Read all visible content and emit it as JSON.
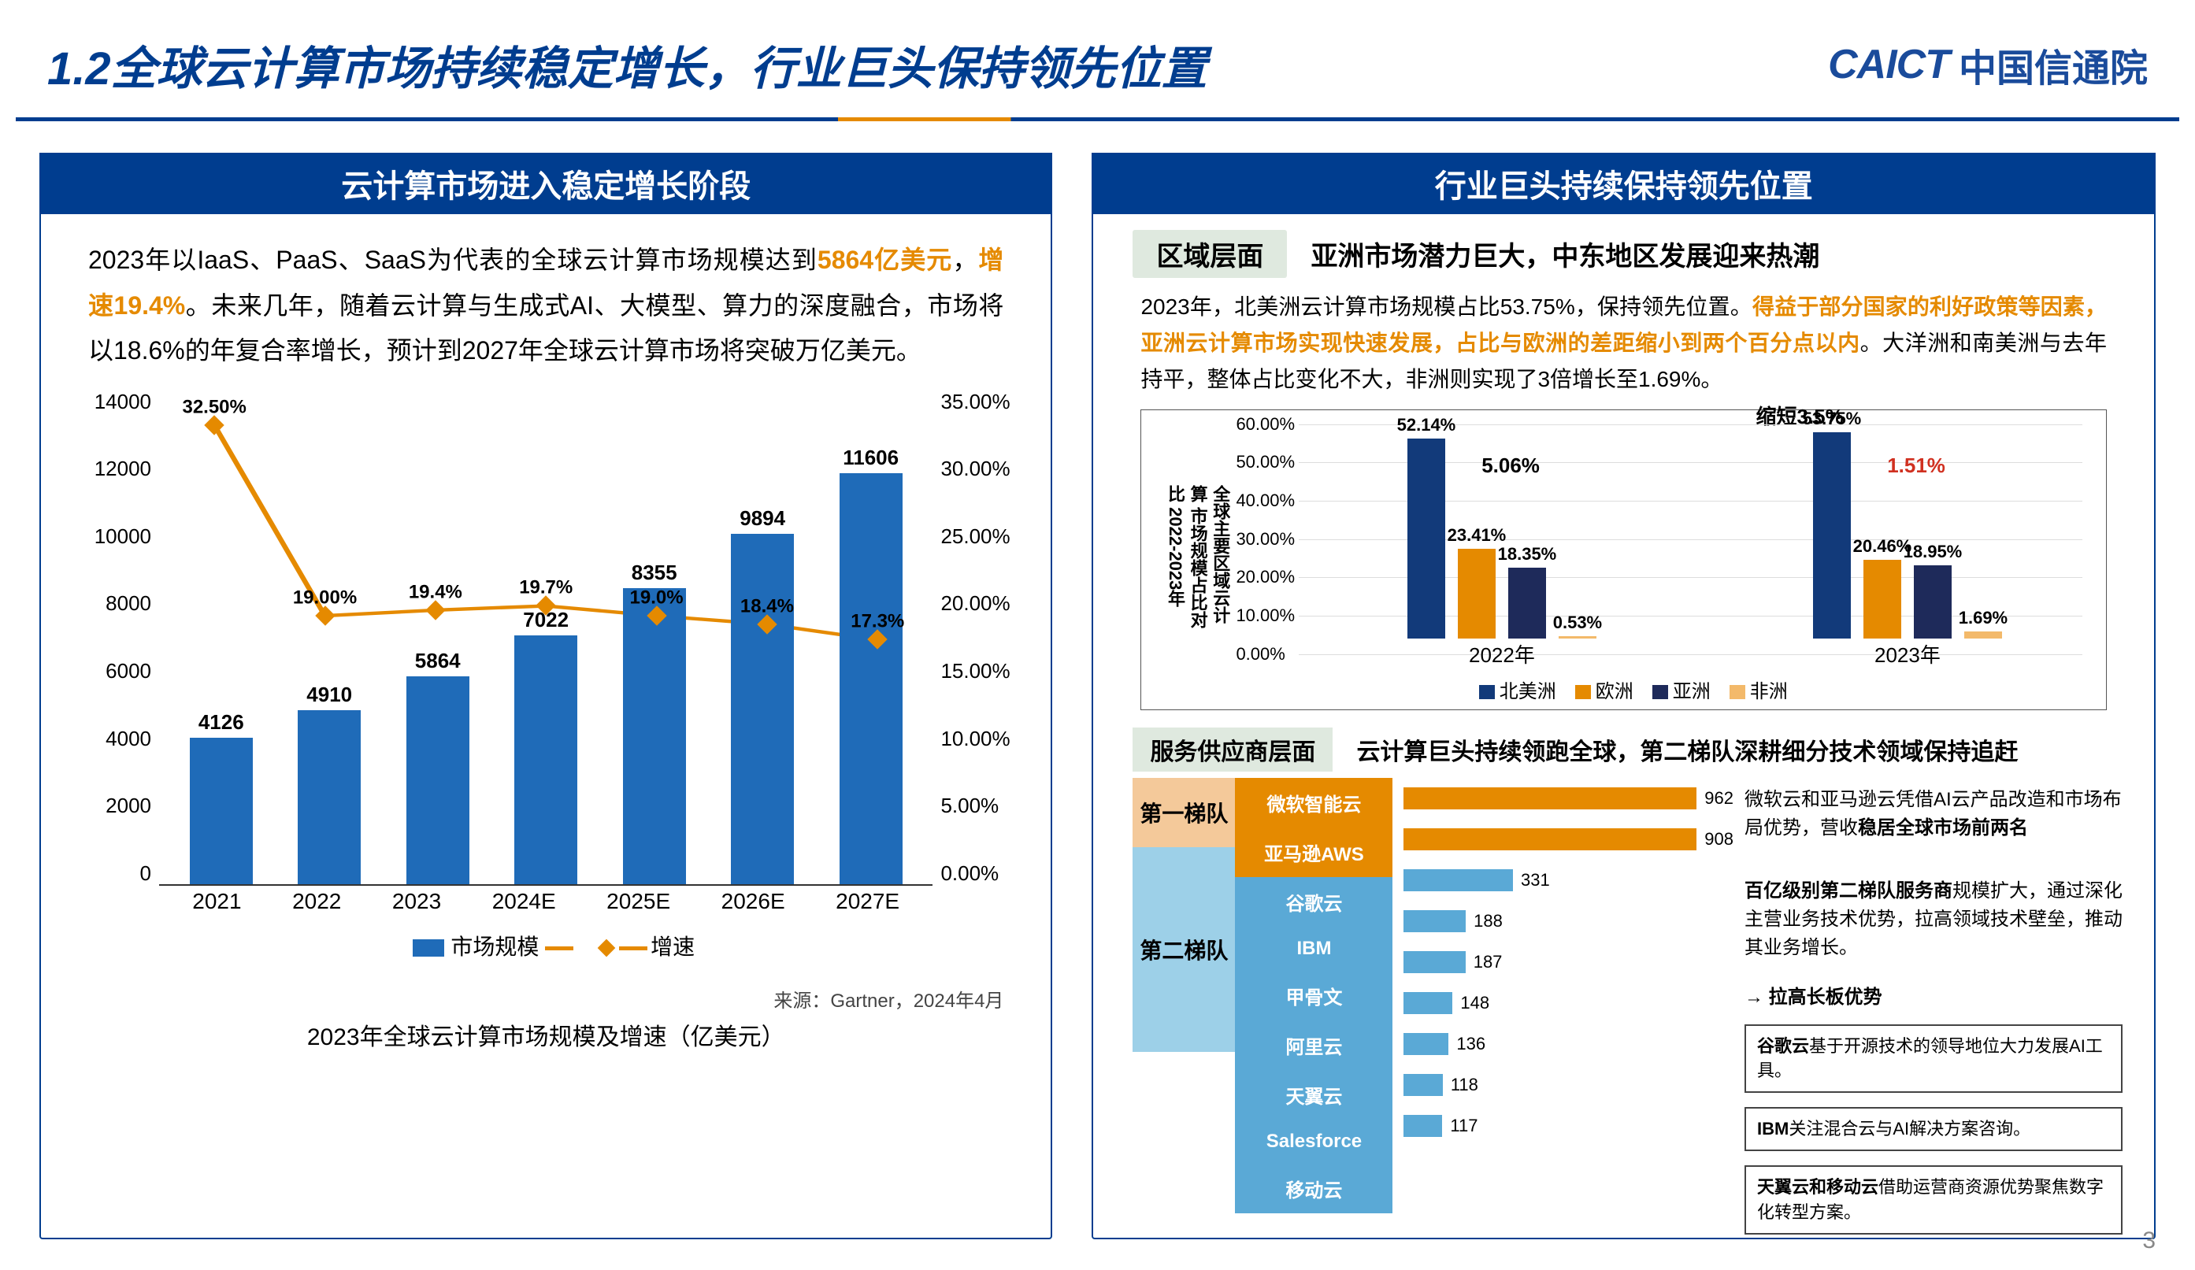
{
  "header": {
    "title": "1.2全球云计算市场持续稳定增长，行业巨头保持领先位置",
    "logo_mark": "CAICT",
    "logo_cn": "中国信通院"
  },
  "page_number": "3",
  "left": {
    "panel_title": "云计算市场进入稳定增长阶段",
    "intro_pre": "2023年以IaaS、PaaS、SaaS为代表的全球云计算市场规模达到",
    "intro_hl1": "5864亿美元",
    "intro_mid": "，",
    "intro_hl2": "增速19.4%",
    "intro_post": "。未来几年，随着云计算与生成式AI、大模型、算力的深度融合，市场将以18.6%的年复合率增长，预计到2027年全球云计算市场将突破万亿美元。",
    "chart": {
      "ylim_left": 14000,
      "ylim_right_max": 35,
      "yticks_left": [
        "14000",
        "12000",
        "10000",
        "8000",
        "6000",
        "4000",
        "2000",
        "0"
      ],
      "yticks_right": [
        "35.00%",
        "30.00%",
        "25.00%",
        "20.00%",
        "15.00%",
        "10.00%",
        "5.00%",
        "0.00%"
      ],
      "categories": [
        "2021",
        "2022",
        "2023",
        "2024E",
        "2025E",
        "2026E",
        "2027E"
      ],
      "bar_values": [
        4126,
        4910,
        5864,
        7022,
        8355,
        9894,
        11606
      ],
      "bar_color": "#1f6bb8",
      "line_values_pct": [
        32.5,
        19.0,
        19.4,
        19.7,
        19.0,
        18.4,
        17.3
      ],
      "line_labels": [
        "32.50%",
        "19.00%",
        "19.4%",
        "19.7%",
        "19.0%",
        "18.4%",
        "17.3%"
      ],
      "line_color": "#e58a00",
      "legend_bar": "市场规模",
      "legend_line": "增速",
      "source": "来源：Gartner，2024年4月",
      "caption": "2023年全球云计算市场规模及增速（亿美元）"
    }
  },
  "right": {
    "panel_title": "行业巨头持续保持领先位置",
    "sec1_tag": "区域层面",
    "sec1_head": "亚洲市场潜力巨大，中东地区发展迎来热潮",
    "sec1_para_pre": "2023年，北美洲云计算市场规模占比53.75%，保持领先位置。",
    "sec1_para_hl": "得益于部分国家的利好政策等因素，亚洲云计算市场实现快速发展，占比与欧洲的差距缩小到两个百分点以内",
    "sec1_para_post": "。大洋洲和南美洲与去年持平，整体占比变化不大，非洲则实现了3倍增长至1.69%。",
    "anno_shrink": "缩短3.5%",
    "anno_2022": "5.06%",
    "anno_2023": "1.51%",
    "region": {
      "ylabel": "全球主要区域云计算\n市场规模占比对比\n2022-2023年",
      "ymax": 60,
      "yticks": [
        "60.00%",
        "50.00%",
        "40.00%",
        "30.00%",
        "20.00%",
        "10.00%",
        "0.00%"
      ],
      "groups": [
        "2022年",
        "2023年"
      ],
      "series": [
        {
          "name": "北美洲",
          "color": "#123a7a",
          "values": [
            52.14,
            53.75
          ]
        },
        {
          "name": "欧洲",
          "color": "#e58a00",
          "values": [
            23.41,
            20.46
          ]
        },
        {
          "name": "亚洲",
          "color": "#1e2a5a",
          "values": [
            18.35,
            18.95
          ]
        },
        {
          "name": "非洲",
          "color": "#f3b96a",
          "values": [
            0.53,
            1.69
          ]
        }
      ]
    },
    "sec2_tag": "服务供应商层面",
    "sec2_head": "云计算巨头持续领跑全球，第二梯队深耕细分技术领域保持追赶",
    "tier1_label": "第一梯队",
    "tier2_label": "第二梯队",
    "services_max": 1000,
    "services": [
      {
        "name": "微软智能云",
        "value": 962,
        "tier": 1
      },
      {
        "name": "亚马逊AWS",
        "value": 908,
        "tier": 1
      },
      {
        "name": "谷歌云",
        "value": 331,
        "tier": 2
      },
      {
        "name": "IBM",
        "value": 188,
        "tier": 2
      },
      {
        "name": "甲骨文",
        "value": 187,
        "tier": 2
      },
      {
        "name": "阿里云",
        "value": 148,
        "tier": 2
      },
      {
        "name": "天翼云",
        "value": 136,
        "tier": 2
      },
      {
        "name": "Salesforce",
        "value": 118,
        "tier": 2
      },
      {
        "name": "移动云",
        "value": 117,
        "tier": 2
      }
    ],
    "note_top_pre": "微软云和亚马逊云凭借AI云产品改造和市场布局优势，营收",
    "note_top_bold": "稳居全球市场前两名",
    "note_mid_pre1": "百亿级别第二梯队服务商",
    "note_mid_post": "规模扩大，通过深化主营业务技术优势，拉高领域技术壁垒，推动其业务增长。",
    "arrow_label": "拉高长板优势",
    "box1_b": "谷歌云",
    "box1_t": "基于开源技术的领导地位大力发展AI工具。",
    "box2_b": "IBM",
    "box2_t": "关注混合云与AI解决方案咨询。",
    "box3_b": "天翼云和移动云",
    "box3_t": "借助运营商资源优势聚焦数字化转型方案。"
  }
}
